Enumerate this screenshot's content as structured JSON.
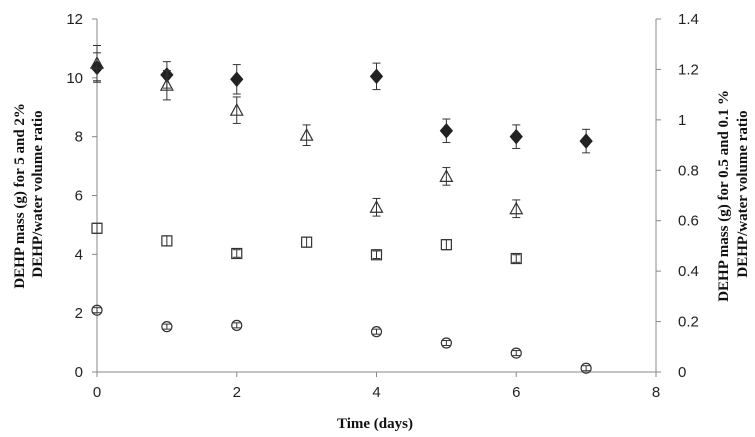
{
  "chart_data": {
    "type": "scatter",
    "title": "",
    "xlabel": "Time (days)",
    "ylabel_left": [
      "DEHP mass (g) for 5 and 2%",
      "DEHP/water  volume ratio"
    ],
    "ylabel_right": [
      "DEHP mass (g)  for 0.5 and 0.1 %",
      "DEHP/water volume ratio"
    ],
    "xlim": [
      0,
      8
    ],
    "ylim_left": [
      0,
      12
    ],
    "ylim_right": [
      0,
      1.4
    ],
    "x_ticks": [
      "0",
      "2",
      "4",
      "6",
      "8"
    ],
    "y_left_ticks": [
      "0",
      "2",
      "4",
      "6",
      "8",
      "10",
      "12"
    ],
    "y_right_ticks": [
      "0",
      "0.2",
      "0.4",
      "0.6",
      "0.8",
      "1",
      "1.2",
      "1.4"
    ],
    "grid": false,
    "legend": "none",
    "series": [
      {
        "marker": "filled-diamond",
        "axis": "left",
        "x": [
          0,
          1,
          2,
          4,
          5,
          6,
          7
        ],
        "y": [
          10.35,
          10.1,
          9.95,
          10.05,
          8.2,
          8.0,
          7.85
        ],
        "err": [
          0.5,
          0.45,
          0.5,
          0.45,
          0.4,
          0.4,
          0.4
        ]
      },
      {
        "marker": "open-triangle",
        "axis": "left",
        "x": [
          0,
          1,
          2,
          3,
          4,
          5,
          6
        ],
        "y": [
          10.5,
          9.75,
          8.9,
          8.05,
          5.6,
          6.65,
          5.55
        ],
        "err": [
          0.6,
          0.5,
          0.45,
          0.35,
          0.3,
          0.3,
          0.3
        ]
      },
      {
        "marker": "open-square",
        "axis": "right",
        "x": [
          0,
          1,
          2,
          3,
          4,
          5,
          6
        ],
        "y": [
          0.57,
          0.52,
          0.47,
          0.515,
          0.465,
          0.505,
          0.45
        ],
        "err": [
          0.02,
          0.02,
          0.015,
          0.02,
          0.015,
          0.02,
          0.015
        ]
      },
      {
        "marker": "open-circle",
        "axis": "right",
        "x": [
          0,
          1,
          2,
          4,
          5,
          6,
          7
        ],
        "y": [
          0.245,
          0.18,
          0.185,
          0.16,
          0.115,
          0.075,
          0.015
        ],
        "err": [
          0.01,
          0.01,
          0.01,
          0.01,
          0.01,
          0.01,
          0.01
        ]
      }
    ],
    "colors": {
      "axis": "#888888",
      "marker": "#333333",
      "fill": "#222222"
    }
  }
}
